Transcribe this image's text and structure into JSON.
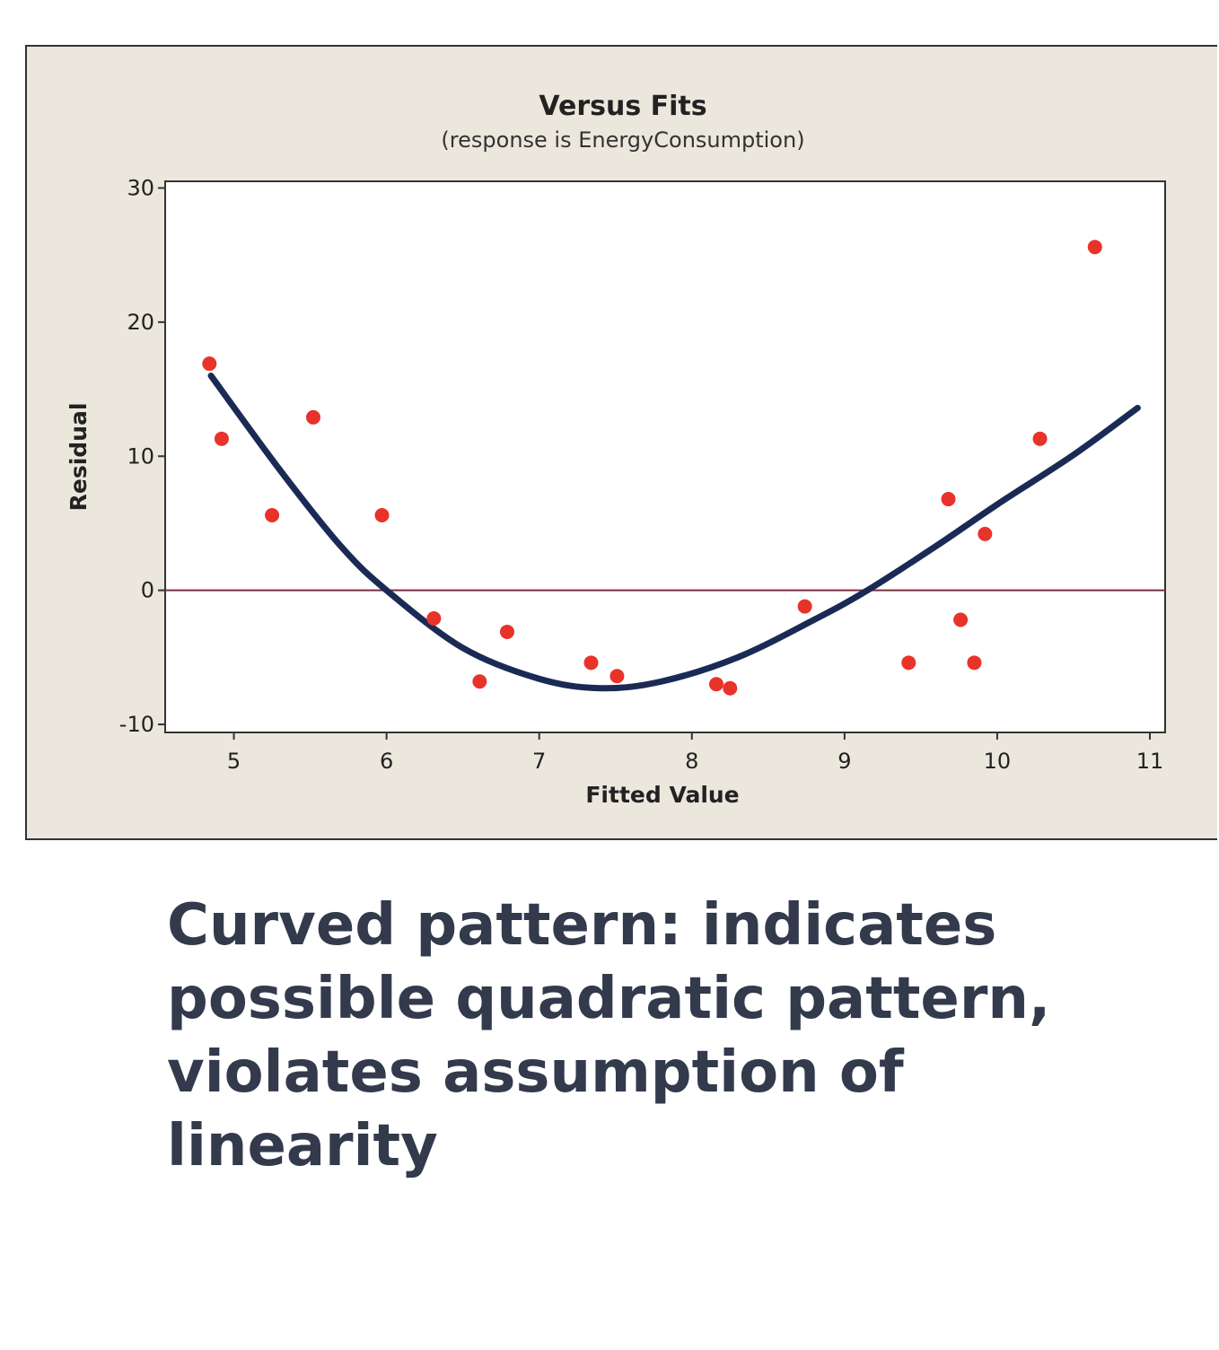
{
  "chart_data": {
    "type": "scatter",
    "title": "Versus Fits",
    "subtitle": "(response is EnergyConsumption)",
    "xlabel": "Fitted Value",
    "ylabel": "Residual",
    "xlim": [
      4.55,
      11.1
    ],
    "ylim": [
      -10.6,
      30.5
    ],
    "xticks": [
      "5",
      "6",
      "7",
      "8",
      "9",
      "10",
      "11"
    ],
    "yticks": [
      "-10",
      "0",
      "10",
      "20",
      "30"
    ],
    "reference_line": {
      "y": 0,
      "color": "#7a2d3c"
    },
    "point_color": "#e8332a",
    "curve_color": "#1b2a55",
    "points": [
      {
        "x": 4.84,
        "y": 16.9
      },
      {
        "x": 4.92,
        "y": 11.3
      },
      {
        "x": 5.25,
        "y": 5.6
      },
      {
        "x": 5.52,
        "y": 12.9
      },
      {
        "x": 5.97,
        "y": 5.6
      },
      {
        "x": 6.31,
        "y": -2.1
      },
      {
        "x": 6.61,
        "y": -6.8
      },
      {
        "x": 6.79,
        "y": -3.1
      },
      {
        "x": 7.34,
        "y": -5.4
      },
      {
        "x": 7.51,
        "y": -6.4
      },
      {
        "x": 8.16,
        "y": -7.0
      },
      {
        "x": 8.25,
        "y": -7.3
      },
      {
        "x": 8.74,
        "y": -1.2
      },
      {
        "x": 9.42,
        "y": -5.4
      },
      {
        "x": 9.68,
        "y": 6.8
      },
      {
        "x": 9.76,
        "y": -2.2
      },
      {
        "x": 9.85,
        "y": -5.4
      },
      {
        "x": 9.92,
        "y": 4.2
      },
      {
        "x": 10.28,
        "y": 11.3
      },
      {
        "x": 10.64,
        "y": 25.6
      }
    ],
    "fit_curve": [
      {
        "x": 4.85,
        "y": 16.0
      },
      {
        "x": 5.3,
        "y": 9.0
      },
      {
        "x": 5.7,
        "y": 3.3
      },
      {
        "x": 6.0,
        "y": 0.0
      },
      {
        "x": 6.5,
        "y": -4.3
      },
      {
        "x": 7.0,
        "y": -6.6
      },
      {
        "x": 7.4,
        "y": -7.3
      },
      {
        "x": 7.8,
        "y": -6.8
      },
      {
        "x": 8.3,
        "y": -5.0
      },
      {
        "x": 8.8,
        "y": -2.2
      },
      {
        "x": 9.15,
        "y": 0.0
      },
      {
        "x": 9.6,
        "y": 3.3
      },
      {
        "x": 10.0,
        "y": 6.4
      },
      {
        "x": 10.5,
        "y": 10.1
      },
      {
        "x": 10.92,
        "y": 13.6
      }
    ]
  },
  "caption": "Curved pattern: indicates possible quadratic pattern, violates assumption of linearity"
}
